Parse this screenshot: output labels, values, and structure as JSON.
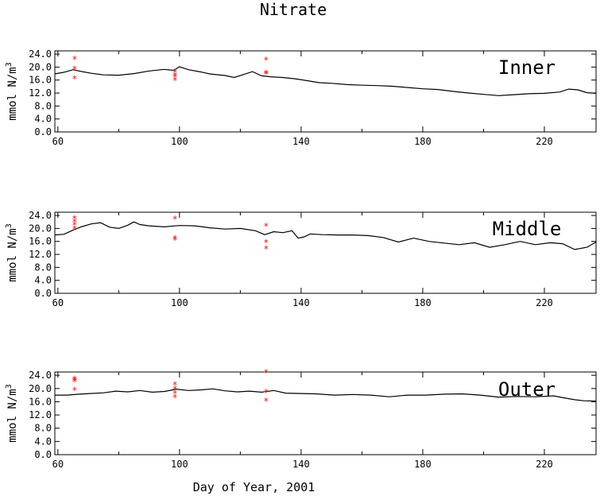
{
  "figure": {
    "title": "Nitrate"
  },
  "chart_data": [
    {
      "type": "line",
      "panel_label": "Inner",
      "xlabel": "",
      "ylabel": "mmol N/m^3",
      "xlim": [
        59,
        237
      ],
      "ylim": [
        0,
        25
      ],
      "xticks": [
        60,
        100,
        140,
        180,
        220
      ],
      "xtick_labels": [
        "60",
        "100",
        "140",
        "180",
        "220"
      ],
      "yticks": [
        0,
        4,
        8,
        12,
        16,
        20,
        24
      ],
      "ytick_labels": [
        "0.0",
        "4.0",
        "8.0",
        "12.0",
        "16.0",
        "20.0",
        "24.0"
      ],
      "line_color": "#000000",
      "marker_color": "#e8181a",
      "series": [
        {
          "type": "line",
          "x": [
            59,
            62,
            65,
            68,
            71,
            75,
            80,
            85,
            90,
            95,
            98,
            100,
            103,
            107,
            110,
            115,
            118,
            121,
            124,
            127,
            130,
            134,
            138,
            142,
            146,
            150,
            155,
            160,
            165,
            170,
            175,
            180,
            185,
            190,
            195,
            200,
            205,
            210,
            215,
            220,
            225,
            228,
            231,
            234,
            237
          ],
          "y": [
            17.9,
            18.4,
            19.2,
            18.6,
            18.1,
            17.6,
            17.5,
            18.0,
            18.8,
            19.3,
            19.0,
            20.1,
            19.2,
            18.5,
            17.9,
            17.4,
            16.8,
            17.7,
            18.6,
            17.3,
            17.0,
            16.8,
            16.4,
            15.8,
            15.2,
            15.0,
            14.6,
            14.4,
            14.3,
            14.1,
            13.7,
            13.3,
            13.1,
            12.5,
            12.0,
            11.6,
            11.2,
            11.5,
            11.8,
            11.9,
            12.3,
            13.2,
            13.0,
            12.1,
            11.9
          ]
        },
        {
          "type": "scatter",
          "x": [
            65.5,
            65.5,
            65.5,
            98.5,
            98.5,
            98.5,
            98.5,
            128.5,
            128.5,
            128.5
          ],
          "y": [
            22.5,
            19.5,
            16.5,
            18.5,
            17.5,
            17.0,
            16.0,
            22.3,
            18.3,
            18.0
          ]
        }
      ]
    },
    {
      "type": "line",
      "panel_label": "Middle",
      "xlabel": "",
      "ylabel": "mmol N/m^3",
      "xlim": [
        59,
        237
      ],
      "ylim": [
        0,
        25
      ],
      "xticks": [
        60,
        100,
        140,
        180,
        220
      ],
      "xtick_labels": [
        "60",
        "100",
        "140",
        "180",
        "220"
      ],
      "yticks": [
        0,
        4,
        8,
        12,
        16,
        20,
        24
      ],
      "ytick_labels": [
        "0.0",
        "4.0",
        "8.0",
        "12.0",
        "16.0",
        "20.0",
        "24.0"
      ],
      "line_color": "#000000",
      "marker_color": "#e8181a",
      "series": [
        {
          "type": "line",
          "x": [
            59,
            62,
            65,
            68,
            71,
            74,
            77,
            80,
            83,
            85,
            87,
            90,
            95,
            100,
            105,
            110,
            115,
            120,
            125,
            128,
            131,
            134,
            137,
            139,
            141,
            143,
            147,
            152,
            157,
            162,
            167,
            172,
            177,
            182,
            187,
            192,
            197,
            202,
            207,
            212,
            217,
            222,
            226,
            230,
            234,
            237
          ],
          "y": [
            18.0,
            18.2,
            19.5,
            20.6,
            21.4,
            21.8,
            20.4,
            20.0,
            21.0,
            22.0,
            21.2,
            20.8,
            20.5,
            20.9,
            20.8,
            20.2,
            19.8,
            20.0,
            19.3,
            18.1,
            19.0,
            18.7,
            19.3,
            17.0,
            17.4,
            18.3,
            18.1,
            18.0,
            18.0,
            17.8,
            17.2,
            15.8,
            17.0,
            16.0,
            15.5,
            15.0,
            15.6,
            14.2,
            15.0,
            16.0,
            15.0,
            15.6,
            15.3,
            13.5,
            14.2,
            15.8
          ]
        },
        {
          "type": "scatter",
          "x": [
            65.5,
            65.5,
            65.5,
            65.5,
            98.5,
            98.5,
            98.5,
            128.5,
            128.5,
            128.5
          ],
          "y": [
            23.2,
            22.2,
            21.2,
            20.0,
            23.0,
            17.0,
            16.6,
            20.8,
            15.8,
            13.8
          ]
        }
      ]
    },
    {
      "type": "line",
      "panel_label": "Outer",
      "xlabel": "Day of Year, 2001",
      "ylabel": "mmol N/m^3",
      "xlim": [
        59,
        237
      ],
      "ylim": [
        0,
        25
      ],
      "xticks": [
        60,
        100,
        140,
        180,
        220
      ],
      "xtick_labels": [
        "60",
        "100",
        "140",
        "180",
        "220"
      ],
      "yticks": [
        0,
        4,
        8,
        12,
        16,
        20,
        24
      ],
      "ytick_labels": [
        "0.0",
        "4.0",
        "8.0",
        "12.0",
        "16.0",
        "20.0",
        "24.0"
      ],
      "line_color": "#000000",
      "marker_color": "#e8181a",
      "series": [
        {
          "type": "line",
          "x": [
            59,
            63,
            67,
            71,
            75,
            79,
            83,
            87,
            91,
            95,
            99,
            103,
            107,
            111,
            115,
            119,
            123,
            127,
            131,
            135,
            139,
            145,
            151,
            157,
            163,
            169,
            175,
            181,
            187,
            193,
            199,
            205,
            211,
            217,
            223,
            227,
            230,
            233,
            237
          ],
          "y": [
            18.0,
            18.0,
            18.3,
            18.5,
            18.7,
            19.2,
            19.0,
            19.4,
            18.9,
            19.1,
            19.8,
            19.4,
            19.6,
            19.9,
            19.3,
            19.0,
            19.2,
            18.9,
            19.4,
            18.6,
            18.5,
            18.4,
            18.0,
            18.2,
            18.0,
            17.5,
            18.0,
            18.0,
            18.3,
            18.4,
            18.0,
            17.4,
            17.6,
            17.5,
            17.8,
            17.1,
            16.6,
            16.3,
            16.2
          ]
        },
        {
          "type": "scatter",
          "x": [
            65.5,
            65.5,
            65.5,
            65.5,
            98.5,
            98.5,
            98.5,
            98.5,
            128.5,
            128.5,
            128.5
          ],
          "y": [
            23.0,
            22.6,
            22.2,
            19.6,
            21.3,
            20.0,
            18.6,
            17.4,
            25.0,
            19.0,
            16.4
          ]
        }
      ]
    }
  ]
}
